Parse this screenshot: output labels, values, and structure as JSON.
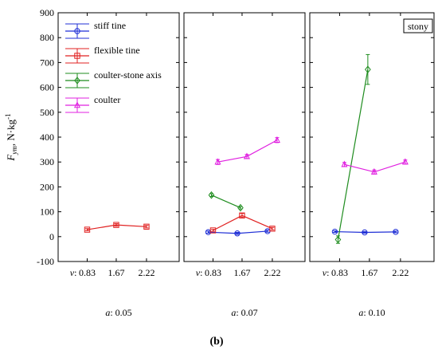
{
  "figure": {
    "caption": "(b)",
    "corner_label": "stony",
    "y_axis_label_main": "F",
    "y_axis_label_sub": "ym",
    "y_axis_label_unit": ", N·kg",
    "y_axis_label_sup": "-1",
    "x_prefix": "v",
    "x_prefix_suffix": ":",
    "panel_prefix": "a",
    "panel_prefix_suffix": ":"
  },
  "colors": {
    "stiff tine": "#1f2fd6",
    "flexible tine": "#e02020",
    "coulter-stone axis": "#1e8c1e",
    "coulter": "#e020e0"
  },
  "legend": [
    {
      "label": "stiff tine",
      "marker": "circle"
    },
    {
      "label": "flexible tine",
      "marker": "square"
    },
    {
      "label": "coulter-stone axis",
      "marker": "diamond"
    },
    {
      "label": "coulter",
      "marker": "triangle"
    }
  ],
  "chart_data": {
    "type": "line",
    "ylim": [
      -100,
      900
    ],
    "yticks": [
      -100,
      0,
      100,
      200,
      300,
      400,
      500,
      600,
      700,
      800,
      900
    ],
    "xticks": [
      "0.83",
      "1.67",
      "2.22"
    ],
    "legend_position": "top-left",
    "grid": false,
    "panels": [
      {
        "label": "0.05",
        "series": [
          {
            "name": "flexible tine",
            "points": [
              [
                0.83,
                28,
                4
              ],
              [
                1.67,
                47,
                5
              ],
              [
                2.22,
                40,
                5
              ]
            ]
          }
        ]
      },
      {
        "label": "0.07",
        "series": [
          {
            "name": "stiff tine",
            "points": [
              [
                0.83,
                18,
                4
              ],
              [
                1.67,
                13,
                4
              ],
              [
                2.22,
                22,
                4
              ]
            ]
          },
          {
            "name": "flexible tine",
            "points": [
              [
                0.83,
                25,
                4
              ],
              [
                1.67,
                85,
                8
              ],
              [
                2.22,
                32,
                5
              ]
            ]
          },
          {
            "name": "coulter-stone axis",
            "points": [
              [
                0.83,
                167,
                6
              ],
              [
                1.67,
                116,
                5
              ]
            ]
          },
          {
            "name": "coulter",
            "points": [
              [
                0.83,
                300,
                10
              ],
              [
                1.67,
                322,
                8
              ],
              [
                2.22,
                388,
                10
              ]
            ]
          }
        ]
      },
      {
        "label": "0.10",
        "series": [
          {
            "name": "stiff tine",
            "points": [
              [
                0.83,
                20,
                3
              ],
              [
                1.67,
                17,
                3
              ],
              [
                2.22,
                19,
                3
              ]
            ]
          },
          {
            "name": "coulter-stone axis",
            "points": [
              [
                0.83,
                -12,
                15
              ],
              [
                1.67,
                672,
                60
              ]
            ]
          },
          {
            "name": "coulter",
            "points": [
              [
                0.83,
                290,
                8
              ],
              [
                1.67,
                260,
                8
              ],
              [
                2.22,
                300,
                8
              ]
            ]
          }
        ]
      }
    ]
  }
}
